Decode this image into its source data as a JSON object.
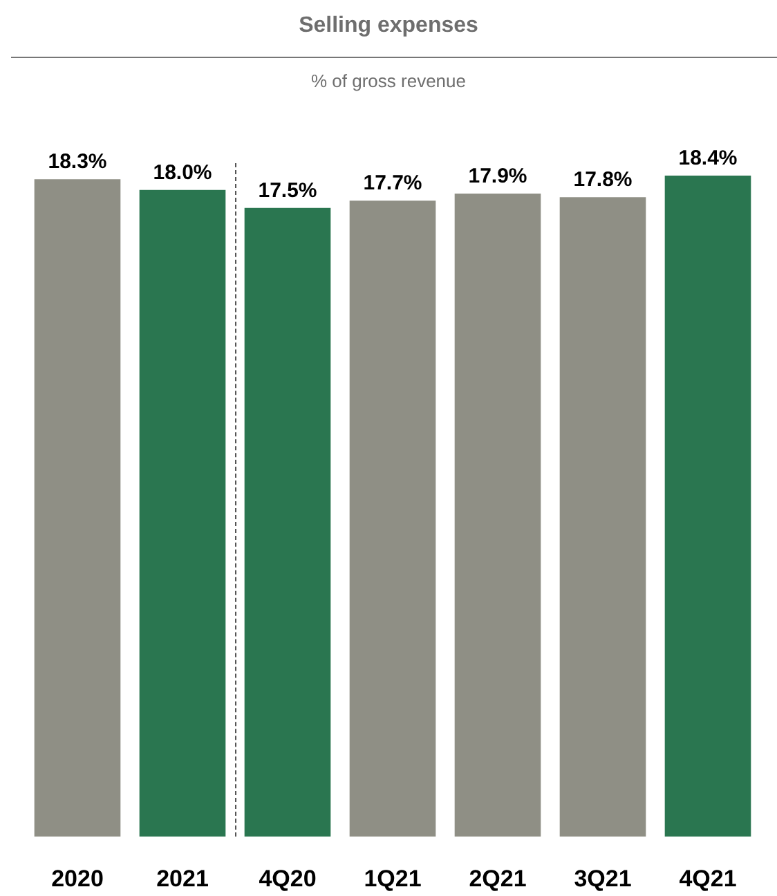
{
  "chart_data": {
    "type": "bar",
    "title": "Selling expenses",
    "subtitle": "% of gross revenue",
    "categories": [
      "2020",
      "2021",
      "4Q20",
      "1Q21",
      "2Q21",
      "3Q21",
      "4Q21"
    ],
    "values": [
      18.3,
      18.0,
      17.5,
      17.7,
      17.9,
      17.8,
      18.4
    ],
    "colors": [
      "#8f8f85",
      "#2a7650",
      "#2a7650",
      "#8f8f85",
      "#8f8f85",
      "#8f8f85",
      "#2a7650"
    ],
    "value_labels": [
      "18.3%",
      "18.0%",
      "17.5%",
      "17.7%",
      "17.9%",
      "17.8%",
      "18.4%"
    ]
  }
}
